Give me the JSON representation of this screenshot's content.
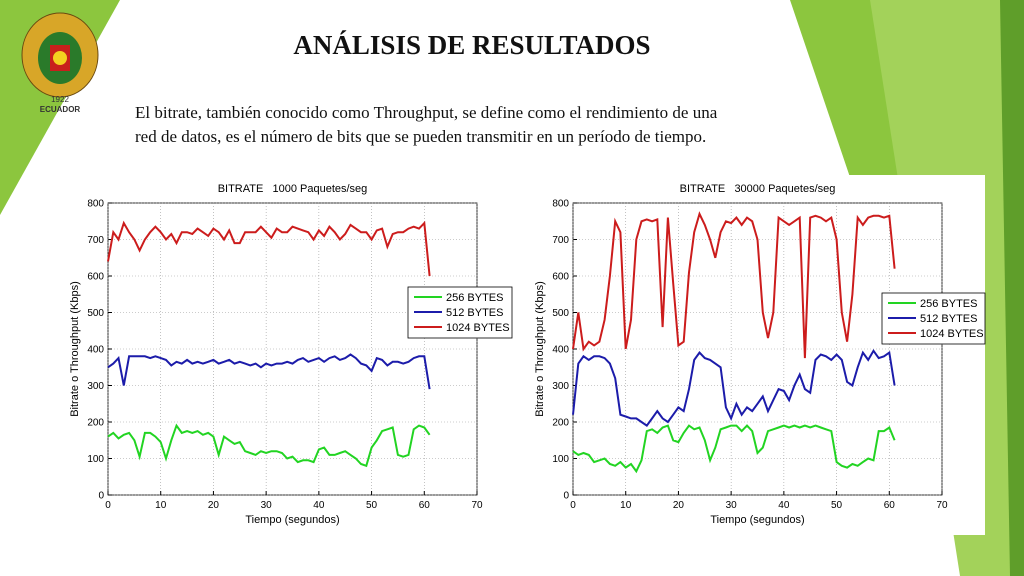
{
  "title": "ANÁLISIS DE RESULTADOS",
  "logo_text": "ECUADOR",
  "logo_year": "1922",
  "text_lines": [
    "El bitrate, también conocido como Throughput, se define como el rendimiento de una",
    "red de datos, es el número de bits que se pueden transmitir en un período de tiempo."
  ],
  "chart_data": [
    {
      "type": "line",
      "title": "BITRATE   1000 Paquetes/seg",
      "x_label": "Tiempo (segundos)",
      "y_label": "Bitrate o Throughput (Kbps)",
      "xlim": [
        0,
        70
      ],
      "xticks": [
        0,
        10,
        20,
        30,
        40,
        50,
        60,
        70
      ],
      "ylim": [
        0,
        800
      ],
      "yticks": [
        0,
        100,
        200,
        300,
        400,
        500,
        600,
        700,
        800
      ],
      "grid": true,
      "legend": "right",
      "x": [
        0,
        1,
        2,
        3,
        4,
        5,
        6,
        7,
        8,
        9,
        10,
        11,
        12,
        13,
        14,
        15,
        16,
        17,
        18,
        19,
        20,
        21,
        22,
        23,
        24,
        25,
        26,
        27,
        28,
        29,
        30,
        31,
        32,
        33,
        34,
        35,
        36,
        37,
        38,
        39,
        40,
        41,
        42,
        43,
        44,
        45,
        46,
        47,
        48,
        49,
        50,
        51,
        52,
        53,
        54,
        55,
        56,
        57,
        58,
        59,
        60,
        61
      ],
      "series": [
        {
          "name": "256 BYTES",
          "color": "#22d422",
          "values": [
            160,
            170,
            155,
            165,
            170,
            150,
            105,
            170,
            170,
            160,
            145,
            100,
            150,
            190,
            170,
            175,
            170,
            175,
            165,
            170,
            160,
            110,
            160,
            150,
            140,
            145,
            120,
            115,
            110,
            120,
            115,
            120,
            120,
            115,
            100,
            105,
            90,
            95,
            95,
            90,
            125,
            130,
            110,
            110,
            115,
            120,
            110,
            100,
            85,
            80,
            130,
            150,
            175,
            180,
            185,
            110,
            105,
            110,
            180,
            190,
            185,
            165
          ]
        },
        {
          "name": "512 BYTES",
          "color": "#1c1caa",
          "values": [
            350,
            360,
            375,
            300,
            380,
            380,
            380,
            380,
            375,
            380,
            375,
            370,
            355,
            365,
            360,
            370,
            360,
            365,
            360,
            365,
            370,
            360,
            365,
            370,
            360,
            365,
            360,
            355,
            360,
            350,
            360,
            355,
            360,
            360,
            365,
            360,
            370,
            375,
            365,
            370,
            375,
            365,
            375,
            380,
            370,
            375,
            385,
            375,
            360,
            355,
            340,
            375,
            370,
            355,
            365,
            365,
            360,
            365,
            375,
            380,
            380,
            290
          ]
        },
        {
          "name": "1024 BYTES",
          "color": "#cc1c1c",
          "values": [
            640,
            720,
            700,
            745,
            720,
            700,
            670,
            700,
            720,
            735,
            720,
            700,
            715,
            690,
            720,
            720,
            715,
            730,
            720,
            710,
            730,
            720,
            700,
            725,
            690,
            690,
            720,
            720,
            720,
            735,
            720,
            705,
            730,
            720,
            720,
            735,
            730,
            725,
            720,
            700,
            725,
            710,
            735,
            720,
            700,
            715,
            740,
            730,
            720,
            720,
            700,
            725,
            730,
            680,
            715,
            720,
            720,
            730,
            735,
            730,
            745,
            600
          ]
        }
      ]
    },
    {
      "type": "line",
      "title": "BITRATE   30000 Paquetes/seg",
      "x_label": "Tiempo (segundos)",
      "y_label": "Bitrate o Throughput (Kbps)",
      "xlim": [
        0,
        70
      ],
      "xticks": [
        0,
        10,
        20,
        30,
        40,
        50,
        60,
        70
      ],
      "ylim": [
        0,
        800
      ],
      "yticks": [
        0,
        100,
        200,
        300,
        400,
        500,
        600,
        700,
        800
      ],
      "grid": true,
      "legend": "right",
      "x": [
        0,
        1,
        2,
        3,
        4,
        5,
        6,
        7,
        8,
        9,
        10,
        11,
        12,
        13,
        14,
        15,
        16,
        17,
        18,
        19,
        20,
        21,
        22,
        23,
        24,
        25,
        26,
        27,
        28,
        29,
        30,
        31,
        32,
        33,
        34,
        35,
        36,
        37,
        38,
        39,
        40,
        41,
        42,
        43,
        44,
        45,
        46,
        47,
        48,
        49,
        50,
        51,
        52,
        53,
        54,
        55,
        56,
        57,
        58,
        59,
        60,
        61
      ],
      "series": [
        {
          "name": "256 BYTES",
          "color": "#22d422",
          "values": [
            120,
            110,
            115,
            110,
            90,
            95,
            100,
            85,
            80,
            90,
            75,
            85,
            65,
            95,
            175,
            180,
            170,
            185,
            190,
            150,
            145,
            170,
            190,
            180,
            185,
            150,
            95,
            130,
            180,
            185,
            190,
            190,
            175,
            190,
            175,
            115,
            130,
            175,
            180,
            185,
            190,
            185,
            190,
            185,
            190,
            185,
            190,
            185,
            180,
            175,
            90,
            80,
            75,
            85,
            80,
            90,
            100,
            95,
            175,
            175,
            185,
            150
          ]
        },
        {
          "name": "512 BYTES",
          "color": "#1c1caa",
          "values": [
            220,
            360,
            380,
            370,
            380,
            380,
            375,
            360,
            320,
            220,
            215,
            210,
            210,
            200,
            190,
            210,
            230,
            210,
            200,
            220,
            240,
            230,
            290,
            370,
            390,
            375,
            370,
            360,
            350,
            240,
            210,
            250,
            220,
            240,
            230,
            250,
            270,
            230,
            260,
            290,
            285,
            260,
            300,
            330,
            290,
            280,
            370,
            385,
            380,
            370,
            385,
            370,
            310,
            300,
            350,
            390,
            370,
            395,
            375,
            380,
            390,
            300
          ]
        },
        {
          "name": "1024 BYTES",
          "color": "#cc1c1c",
          "values": [
            400,
            500,
            400,
            420,
            410,
            420,
            480,
            600,
            750,
            720,
            400,
            480,
            700,
            750,
            755,
            750,
            755,
            460,
            760,
            580,
            410,
            420,
            610,
            720,
            770,
            740,
            700,
            650,
            720,
            750,
            745,
            760,
            740,
            760,
            750,
            700,
            500,
            430,
            500,
            760,
            750,
            740,
            750,
            760,
            375,
            760,
            765,
            760,
            750,
            760,
            700,
            500,
            420,
            550,
            760,
            740,
            760,
            765,
            765,
            760,
            765,
            620
          ]
        }
      ]
    }
  ]
}
